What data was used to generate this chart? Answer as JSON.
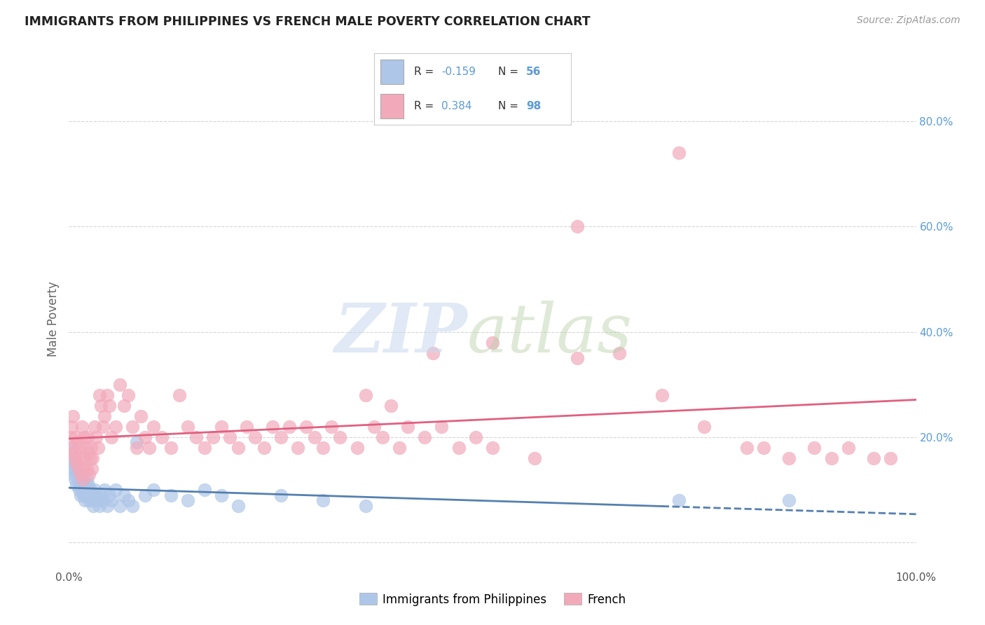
{
  "title": "IMMIGRANTS FROM PHILIPPINES VS FRENCH MALE POVERTY CORRELATION CHART",
  "source": "Source: ZipAtlas.com",
  "ylabel": "Male Poverty",
  "xlim": [
    0,
    1.0
  ],
  "ylim": [
    -0.05,
    0.9
  ],
  "x_ticks": [
    0.0,
    0.2,
    0.4,
    0.6,
    0.8,
    1.0
  ],
  "x_tick_labels": [
    "0.0%",
    "",
    "",
    "",
    "",
    "100.0%"
  ],
  "y_ticks": [
    0.0,
    0.2,
    0.4,
    0.6,
    0.8
  ],
  "y_tick_labels": [
    "",
    "20.0%",
    "40.0%",
    "60.0%",
    "80.0%"
  ],
  "legend_labels": [
    "Immigrants from Philippines",
    "French"
  ],
  "R_blue": "-0.159",
  "N_blue": "56",
  "R_pink": "0.384",
  "N_pink": "98",
  "blue_color": "#aec6e8",
  "pink_color": "#f2aabb",
  "blue_line_color": "#5580b0",
  "pink_line_color": "#e06080",
  "grid_color": "#cccccc",
  "background_color": "#ffffff",
  "title_color": "#222222",
  "right_axis_color": "#5b9bd5",
  "text_color": "#333333",
  "blue_scatter_x": [
    0.002,
    0.003,
    0.004,
    0.005,
    0.006,
    0.007,
    0.008,
    0.009,
    0.01,
    0.011,
    0.012,
    0.013,
    0.014,
    0.015,
    0.016,
    0.017,
    0.018,
    0.019,
    0.02,
    0.021,
    0.022,
    0.023,
    0.024,
    0.025,
    0.026,
    0.027,
    0.028,
    0.029,
    0.03,
    0.032,
    0.034,
    0.036,
    0.038,
    0.04,
    0.042,
    0.045,
    0.048,
    0.05,
    0.055,
    0.06,
    0.065,
    0.07,
    0.075,
    0.08,
    0.09,
    0.1,
    0.12,
    0.14,
    0.16,
    0.18,
    0.2,
    0.25,
    0.3,
    0.35,
    0.72,
    0.85
  ],
  "blue_scatter_y": [
    0.16,
    0.14,
    0.15,
    0.18,
    0.13,
    0.12,
    0.14,
    0.11,
    0.13,
    0.12,
    0.1,
    0.11,
    0.09,
    0.12,
    0.1,
    0.09,
    0.11,
    0.08,
    0.1,
    0.12,
    0.09,
    0.11,
    0.08,
    0.1,
    0.09,
    0.08,
    0.09,
    0.07,
    0.1,
    0.09,
    0.08,
    0.07,
    0.09,
    0.08,
    0.1,
    0.07,
    0.09,
    0.08,
    0.1,
    0.07,
    0.09,
    0.08,
    0.07,
    0.19,
    0.09,
    0.1,
    0.09,
    0.08,
    0.1,
    0.09,
    0.07,
    0.09,
    0.08,
    0.07,
    0.08,
    0.08
  ],
  "pink_scatter_x": [
    0.002,
    0.003,
    0.004,
    0.005,
    0.006,
    0.007,
    0.008,
    0.009,
    0.01,
    0.011,
    0.012,
    0.013,
    0.014,
    0.015,
    0.016,
    0.017,
    0.018,
    0.019,
    0.02,
    0.021,
    0.022,
    0.023,
    0.024,
    0.025,
    0.026,
    0.027,
    0.028,
    0.03,
    0.032,
    0.034,
    0.036,
    0.038,
    0.04,
    0.042,
    0.045,
    0.048,
    0.05,
    0.055,
    0.06,
    0.065,
    0.07,
    0.075,
    0.08,
    0.085,
    0.09,
    0.095,
    0.1,
    0.11,
    0.12,
    0.13,
    0.14,
    0.15,
    0.16,
    0.17,
    0.18,
    0.19,
    0.2,
    0.21,
    0.22,
    0.23,
    0.24,
    0.25,
    0.26,
    0.27,
    0.28,
    0.29,
    0.3,
    0.31,
    0.32,
    0.34,
    0.35,
    0.36,
    0.37,
    0.38,
    0.39,
    0.4,
    0.42,
    0.44,
    0.46,
    0.48,
    0.5,
    0.55,
    0.6,
    0.65,
    0.7,
    0.75,
    0.8,
    0.82,
    0.85,
    0.88,
    0.9,
    0.92,
    0.95,
    0.97,
    0.43,
    0.5,
    0.6,
    0.72
  ],
  "pink_scatter_y": [
    0.2,
    0.22,
    0.18,
    0.24,
    0.17,
    0.16,
    0.2,
    0.15,
    0.19,
    0.14,
    0.18,
    0.16,
    0.13,
    0.22,
    0.12,
    0.14,
    0.2,
    0.16,
    0.18,
    0.14,
    0.2,
    0.17,
    0.13,
    0.16,
    0.18,
    0.14,
    0.16,
    0.22,
    0.2,
    0.18,
    0.28,
    0.26,
    0.22,
    0.24,
    0.28,
    0.26,
    0.2,
    0.22,
    0.3,
    0.26,
    0.28,
    0.22,
    0.18,
    0.24,
    0.2,
    0.18,
    0.22,
    0.2,
    0.18,
    0.28,
    0.22,
    0.2,
    0.18,
    0.2,
    0.22,
    0.2,
    0.18,
    0.22,
    0.2,
    0.18,
    0.22,
    0.2,
    0.22,
    0.18,
    0.22,
    0.2,
    0.18,
    0.22,
    0.2,
    0.18,
    0.28,
    0.22,
    0.2,
    0.26,
    0.18,
    0.22,
    0.2,
    0.22,
    0.18,
    0.2,
    0.18,
    0.16,
    0.6,
    0.36,
    0.28,
    0.22,
    0.18,
    0.18,
    0.16,
    0.18,
    0.16,
    0.18,
    0.16,
    0.16,
    0.36,
    0.38,
    0.35,
    0.74
  ]
}
